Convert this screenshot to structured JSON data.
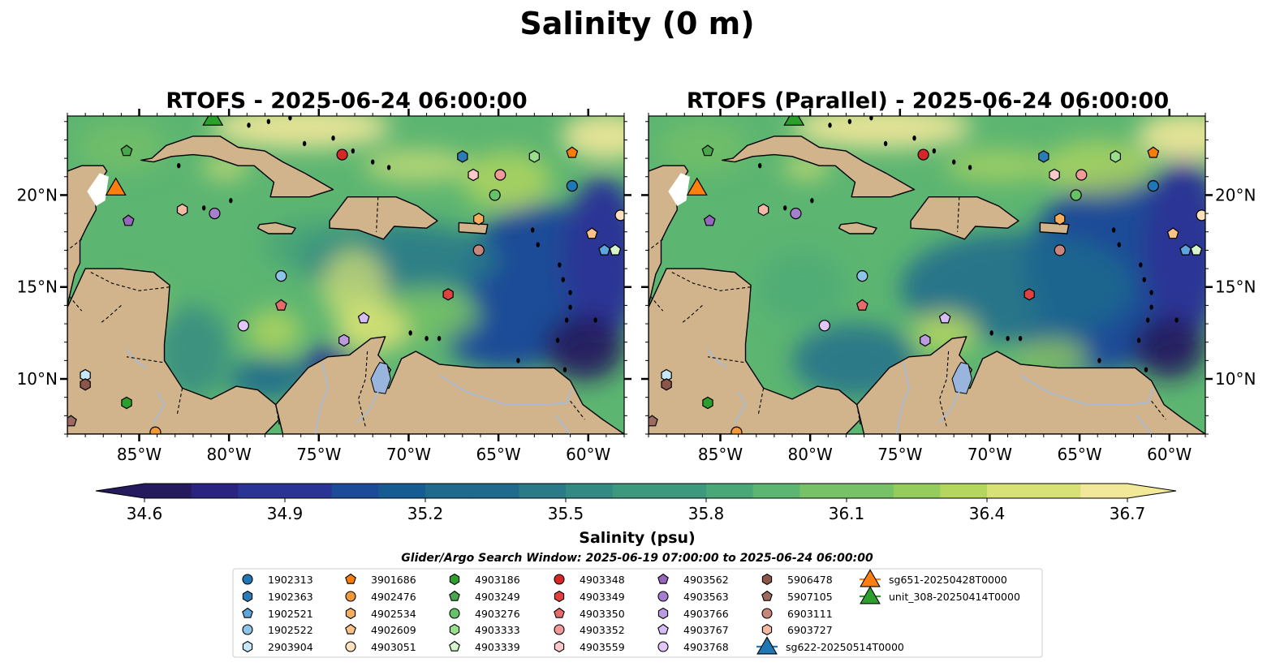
{
  "figure_title": "Salinity (0 m)",
  "colors": {
    "land": "#d2b48c",
    "coast": "#000000",
    "river": "#a9bcd6",
    "lake": "#9ab5dd",
    "colormap": [
      "#251a5e",
      "#2a2480",
      "#2a3495",
      "#1c4b97",
      "#175b93",
      "#1f6a8d",
      "#2a7a88",
      "#338a83",
      "#3c997d",
      "#4aa878",
      "#5cb571",
      "#77c166",
      "#94cc5e",
      "#b4d65f",
      "#d7e176",
      "#f2e89a"
    ]
  },
  "panels": [
    {
      "title": "RTOFS - 2025-06-24 06:00:00",
      "variant": "rtofs"
    },
    {
      "title": "RTOFS (Parallel) - 2025-06-24 06:00:00",
      "variant": "parallel"
    }
  ],
  "colorbar": {
    "label": "Salinity (psu)",
    "ticks": [
      "34.6",
      "34.9",
      "35.2",
      "35.5",
      "35.8",
      "36.1",
      "36.4",
      "36.7"
    ]
  },
  "search_window": "Glider/Argo Search Window: 2025-06-19 07:00:00 to 2025-06-24 06:00:00",
  "chart_data": {
    "type": "heatmap",
    "variable": "Salinity",
    "depth": "0 m",
    "units": "psu",
    "vmin": 34.6,
    "vmax": 36.7,
    "colorbar_extend": "both",
    "lon_range": [
      -89,
      -58
    ],
    "lat_range": [
      7,
      24.3
    ],
    "x_ticks": [
      {
        "value": -85,
        "label": "85°W"
      },
      {
        "value": -80,
        "label": "80°W"
      },
      {
        "value": -75,
        "label": "75°W"
      },
      {
        "value": -70,
        "label": "70°W"
      },
      {
        "value": -65,
        "label": "65°W"
      },
      {
        "value": -60,
        "label": "60°W"
      }
    ],
    "y_ticks": [
      {
        "value": 10,
        "label": "10°N"
      },
      {
        "value": 15,
        "label": "15°N"
      },
      {
        "value": 20,
        "label": "20°N"
      }
    ],
    "platforms": [
      {
        "name": "1902313",
        "marker": "circle",
        "color": "#1f77b4",
        "lon": -60.9,
        "lat": 20.5
      },
      {
        "name": "1902363",
        "marker": "hexagon",
        "color": "#2c7bb6",
        "lon": -67.0,
        "lat": 22.1
      },
      {
        "name": "1902521",
        "marker": "pentagon",
        "color": "#5da5da",
        "lon": -59.1,
        "lat": 17.0
      },
      {
        "name": "1902522",
        "marker": "circle",
        "color": "#8ec3ea",
        "lon": -77.1,
        "lat": 15.6
      },
      {
        "name": "2903904",
        "marker": "hexagon",
        "color": "#c6e7f7",
        "lon": -88.0,
        "lat": 10.2
      },
      {
        "name": "3901686",
        "marker": "pentagon",
        "color": "#f57e0a",
        "lon": -60.9,
        "lat": 22.3
      },
      {
        "name": "4902476",
        "marker": "circle",
        "color": "#f39a38",
        "lon": -84.1,
        "lat": 7.1
      },
      {
        "name": "4902534",
        "marker": "hexagon",
        "color": "#f7ae5c",
        "lon": -66.1,
        "lat": 18.7
      },
      {
        "name": "4902609",
        "marker": "pentagon",
        "color": "#fac286",
        "lon": -59.8,
        "lat": 17.9
      },
      {
        "name": "4903051",
        "marker": "circle",
        "color": "#fde0bd",
        "lon": -58.2,
        "lat": 18.9
      },
      {
        "name": "4903186",
        "marker": "hexagon",
        "color": "#2ca02c",
        "lon": -85.7,
        "lat": 8.7
      },
      {
        "name": "4903249",
        "marker": "pentagon",
        "color": "#4aa64a",
        "lon": -85.7,
        "lat": 22.4
      },
      {
        "name": "4903276",
        "marker": "circle",
        "color": "#66c266",
        "lon": -65.2,
        "lat": 20.0
      },
      {
        "name": "4903333",
        "marker": "hexagon",
        "color": "#98df8a",
        "lon": -63.0,
        "lat": 22.1
      },
      {
        "name": "4903339",
        "marker": "pentagon",
        "color": "#d5f5cc",
        "lon": -58.5,
        "lat": 17.0
      },
      {
        "name": "4903348",
        "marker": "circle",
        "color": "#d62728",
        "lon": -73.7,
        "lat": 22.2
      },
      {
        "name": "4903349",
        "marker": "hexagon",
        "color": "#e0403f",
        "lon": -67.8,
        "lat": 14.6
      },
      {
        "name": "4903350",
        "marker": "pentagon",
        "color": "#e86a6a",
        "lon": -77.1,
        "lat": 14.0
      },
      {
        "name": "4903352",
        "marker": "circle",
        "color": "#f29a9a",
        "lon": -64.9,
        "lat": 21.1
      },
      {
        "name": "4903559",
        "marker": "hexagon",
        "color": "#fbc9c9",
        "lon": -66.4,
        "lat": 21.1
      },
      {
        "name": "4903562",
        "marker": "pentagon",
        "color": "#9467bd",
        "lon": -85.6,
        "lat": 18.6
      },
      {
        "name": "4903563",
        "marker": "circle",
        "color": "#a77fcf",
        "lon": -80.8,
        "lat": 19.0
      },
      {
        "name": "4903766",
        "marker": "hexagon",
        "color": "#bb9ae0",
        "lon": -73.6,
        "lat": 12.1
      },
      {
        "name": "4903767",
        "marker": "pentagon",
        "color": "#d6bdf5",
        "lon": -72.5,
        "lat": 13.3
      },
      {
        "name": "4903768",
        "marker": "circle",
        "color": "#e2c6f7",
        "lon": -79.2,
        "lat": 12.9
      },
      {
        "name": "5906478",
        "marker": "hexagon",
        "color": "#8c564b",
        "lon": -88.0,
        "lat": 9.7
      },
      {
        "name": "5907105",
        "marker": "pentagon",
        "color": "#9c6a5e",
        "lon": -88.8,
        "lat": 7.7
      },
      {
        "name": "6903111",
        "marker": "circle",
        "color": "#c7867b",
        "lon": -66.1,
        "lat": 17.0
      },
      {
        "name": "6903727",
        "marker": "hexagon",
        "color": "#f3b9a2",
        "lon": -82.6,
        "lat": 19.2
      },
      {
        "name": "sg622-20250514T0000",
        "marker": "triangle",
        "color": "#1f77b4",
        "line": true,
        "lon": null,
        "lat": null
      },
      {
        "name": "sg651-20250428T0000",
        "marker": "triangle",
        "color": "#ff7f0e",
        "line": true,
        "lon": -86.3,
        "lat": 20.4
      },
      {
        "name": "unit_308-20250414T0000",
        "marker": "triangle",
        "color": "#2ca02c",
        "line": true,
        "lon": -80.9,
        "lat": 24.2
      }
    ]
  }
}
